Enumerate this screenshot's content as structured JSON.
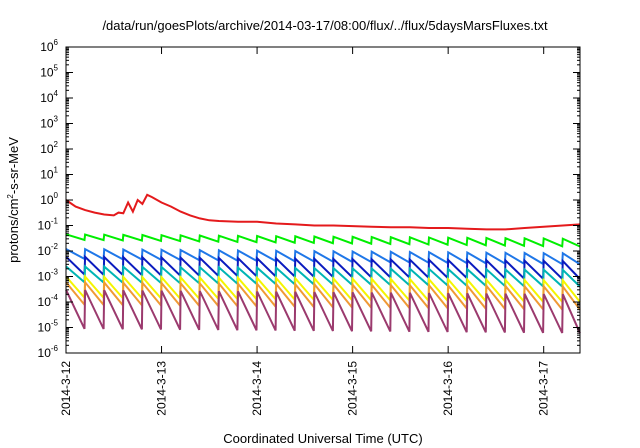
{
  "chart_data": {
    "type": "line",
    "title": "/data/run/goesPlots/archive/2014-03-17/08:00/flux/../flux/5daysMarsFluxes.txt",
    "xlabel": "Coordinated Universal Time (UTC)",
    "ylabel_parts": [
      "protons/cm",
      "2",
      "-s-sr-MeV"
    ],
    "yscale": "log",
    "ylim": [
      1e-06,
      1000000.0
    ],
    "xlim_days": [
      0,
      5.38
    ],
    "x_ticks": [
      {
        "label": "2014-3-12",
        "day": 0
      },
      {
        "label": "2014-3-13",
        "day": 1
      },
      {
        "label": "2014-3-14",
        "day": 2
      },
      {
        "label": "2014-3-15",
        "day": 3
      },
      {
        "label": "2014-3-16",
        "day": 4
      },
      {
        "label": "2014-3-17",
        "day": 5
      }
    ],
    "y_ticks": [
      {
        "base": "10",
        "exp": "6",
        "value": 1000000.0
      },
      {
        "base": "10",
        "exp": "5",
        "value": 100000.0
      },
      {
        "base": "10",
        "exp": "4",
        "value": 10000.0
      },
      {
        "base": "10",
        "exp": "3",
        "value": 1000.0
      },
      {
        "base": "10",
        "exp": "2",
        "value": 100.0
      },
      {
        "base": "10",
        "exp": "1",
        "value": 10.0
      },
      {
        "base": "10",
        "exp": "0",
        "value": 1
      },
      {
        "base": "10",
        "exp": "-1",
        "value": 0.1
      },
      {
        "base": "10",
        "exp": "-2",
        "value": 0.01
      },
      {
        "base": "10",
        "exp": "-3",
        "value": 0.001
      },
      {
        "base": "10",
        "exp": "-4",
        "value": 0.0001
      },
      {
        "base": "10",
        "exp": "-5",
        "value": 1e-05
      },
      {
        "base": "10",
        "exp": "-6",
        "value": 1e-06
      }
    ],
    "grid": false,
    "legend": "none",
    "series": [
      {
        "color": "#e41a1c",
        "x": [
          0,
          0.1,
          0.2,
          0.3,
          0.4,
          0.5,
          0.55,
          0.6,
          0.65,
          0.7,
          0.75,
          0.8,
          0.85,
          0.9,
          1.0,
          1.1,
          1.2,
          1.3,
          1.4,
          1.5,
          1.6,
          1.8,
          2.0,
          2.2,
          2.4,
          2.6,
          2.8,
          3.0,
          3.2,
          3.4,
          3.6,
          3.8,
          4.0,
          4.2,
          4.4,
          4.6,
          4.8,
          5.0,
          5.2,
          5.38
        ],
        "y": [
          1.0,
          0.55,
          0.4,
          0.32,
          0.27,
          0.25,
          0.32,
          0.3,
          0.8,
          0.35,
          1.0,
          0.7,
          1.6,
          1.3,
          0.8,
          0.55,
          0.35,
          0.25,
          0.19,
          0.16,
          0.15,
          0.14,
          0.14,
          0.12,
          0.11,
          0.1,
          0.1,
          0.095,
          0.09,
          0.085,
          0.085,
          0.08,
          0.08,
          0.075,
          0.07,
          0.07,
          0.08,
          0.09,
          0.1,
          0.11
        ]
      },
      {
        "color": "#00ee00",
        "sawtooth": {
          "period": 0.2,
          "start": 0,
          "end": 5.38,
          "peak_start": 0.045,
          "peak_end": 0.03,
          "trough_start": 0.028,
          "trough_end": 0.015
        }
      },
      {
        "color": "#1f77e8",
        "sawtooth": {
          "period": 0.2,
          "start": 0,
          "end": 5.38,
          "peak_start": 0.012,
          "peak_end": 0.008,
          "trough_start": 0.005,
          "trough_end": 0.003
        }
      },
      {
        "color": "#0b1bbf",
        "sawtooth": {
          "period": 0.2,
          "start": 0,
          "end": 5.38,
          "peak_start": 0.006,
          "peak_end": 0.004,
          "trough_start": 0.0012,
          "trough_end": 0.0008
        }
      },
      {
        "color": "#00b5b5",
        "sawtooth": {
          "period": 0.2,
          "start": 0,
          "end": 5.38,
          "peak_start": 0.0025,
          "peak_end": 0.0018,
          "trough_start": 0.0006,
          "trough_end": 0.0004
        }
      },
      {
        "color": "#f5f500",
        "sawtooth": {
          "period": 0.2,
          "start": 0,
          "end": 5.38,
          "peak_start": 0.001,
          "peak_end": 0.0007,
          "trough_start": 0.00015,
          "trough_end": 0.0001
        }
      },
      {
        "color": "#f09a35",
        "sawtooth": {
          "period": 0.2,
          "start": 0,
          "end": 5.38,
          "peak_start": 0.0006,
          "peak_end": 0.0004,
          "trough_start": 8e-05,
          "trough_end": 5e-05
        }
      },
      {
        "color": "#9b3a6e",
        "sawtooth": {
          "period": 0.2,
          "start": 0,
          "end": 5.38,
          "peak_start": 0.0003,
          "peak_end": 0.0002,
          "trough_start": 9e-06,
          "trough_end": 6e-06
        }
      }
    ]
  }
}
